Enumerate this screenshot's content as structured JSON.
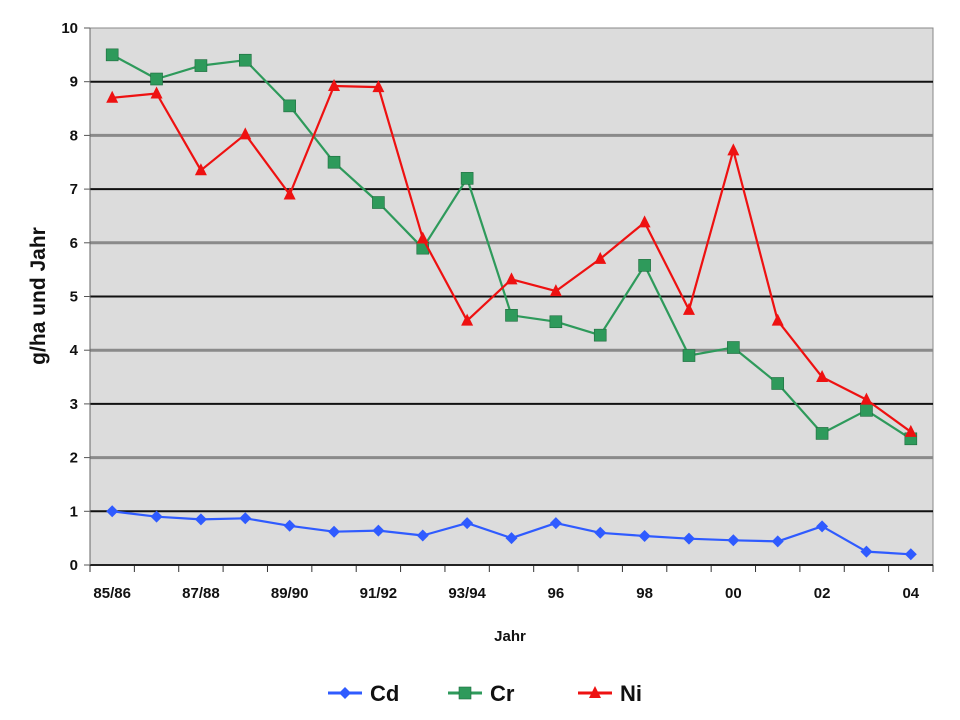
{
  "chart_data": {
    "type": "line",
    "xlabel": "Jahr",
    "ylabel": "g/ha und Jahr",
    "ylim": [
      0,
      10
    ],
    "yticks": [
      "0",
      "1",
      "2",
      "3",
      "4",
      "5",
      "6",
      "7",
      "8",
      "9",
      "10"
    ],
    "categories": [
      "85/86",
      "",
      "87/88",
      "",
      "89/90",
      "",
      "91/92",
      "",
      "93/94",
      "",
      "96",
      "",
      "98",
      "",
      "00",
      "",
      "02",
      "",
      "04"
    ],
    "grid": true,
    "legend_position": "bottom",
    "series": [
      {
        "name": "Cd",
        "color": "#2f5bff",
        "marker": "diamond",
        "values": [
          1.0,
          0.9,
          0.85,
          0.87,
          0.73,
          0.62,
          0.64,
          0.55,
          0.78,
          0.5,
          0.78,
          0.6,
          0.54,
          0.49,
          0.46,
          0.44,
          0.72,
          0.25,
          0.2
        ]
      },
      {
        "name": "Cr",
        "color": "#2e9a5b",
        "marker": "square",
        "values": [
          9.5,
          9.05,
          9.3,
          9.4,
          8.55,
          7.5,
          6.75,
          5.9,
          7.2,
          4.65,
          4.53,
          4.28,
          5.58,
          3.9,
          4.05,
          3.38,
          2.45,
          2.88,
          2.35
        ]
      },
      {
        "name": "Ni",
        "color": "#ee1111",
        "marker": "triangle",
        "values": [
          8.7,
          8.78,
          7.35,
          8.02,
          6.9,
          8.92,
          8.9,
          6.08,
          4.55,
          5.32,
          5.1,
          5.7,
          6.38,
          4.75,
          7.72,
          4.55,
          3.5,
          3.08,
          2.48
        ]
      }
    ]
  }
}
